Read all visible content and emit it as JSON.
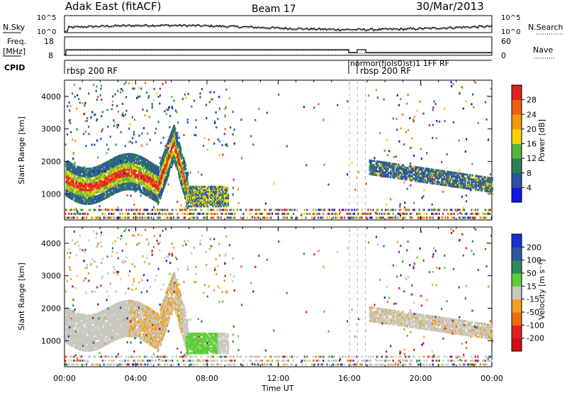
{
  "header": {
    "station": "Adak East (fitACF)",
    "beam": "Beam 17",
    "date": "30/Mar/2013"
  },
  "panels": {
    "nsky": {
      "left_label": "N.Sky",
      "right_label": "N.Search",
      "ticks_left": [
        "10^5",
        "10^0"
      ],
      "ticks_right": [
        "10^5",
        "10^0"
      ]
    },
    "freq": {
      "left_label_1": "Freq.",
      "left_label_2": "[MHz]",
      "right_label": "Nave",
      "ticks_left": [
        "18",
        "8"
      ],
      "ticks_right": [
        "60",
        "0"
      ]
    },
    "cpid": {
      "label": "CPID",
      "entries": [
        "rbsp 200 RF",
        "normor(fjols0)st)1 1FF RF",
        "rbsp 200 RF"
      ]
    }
  },
  "chart_data": [
    {
      "type": "heatmap",
      "title": "",
      "ylabel": "Slant Range [km]",
      "xlabel": "",
      "ylim": [
        200,
        4500
      ],
      "yticks": [
        "1000",
        "2000",
        "3000",
        "4000"
      ],
      "colorbar": {
        "label": "Power [dB]",
        "ticks": [
          "4",
          "8",
          "12",
          "16",
          "20",
          "24",
          "28"
        ],
        "range": [
          0,
          30
        ],
        "colors": [
          "#1414e6",
          "#2a52a8",
          "#2e7d5a",
          "#56b340",
          "#f5d200",
          "#f09a10",
          "#f06010",
          "#e02020"
        ]
      }
    },
    {
      "type": "heatmap",
      "title": "",
      "ylabel": "Slant Range [km]",
      "xlabel": "Time UT",
      "ylim": [
        200,
        4500
      ],
      "yticks": [
        "1000",
        "2000",
        "3000",
        "4000"
      ],
      "xticks": [
        "00:00",
        "04:00",
        "08:00",
        "12:00",
        "16:00",
        "20:00",
        "00:00"
      ],
      "xlim_hours": [
        0,
        24
      ],
      "colorbar": {
        "label": "Velocity [m s⁻¹]",
        "ticks": [
          "200",
          "100",
          "50",
          "15",
          "-15",
          "-50",
          "-100",
          "-200"
        ],
        "colors": [
          "#1a2fd0",
          "#2a5aa0",
          "#2f8a5a",
          "#5fcc3a",
          "#c8c8c0",
          "#f0a020",
          "#f06a10",
          "#e02020",
          "#d01010"
        ]
      }
    }
  ],
  "colors": {
    "gray_line": "#aaaaaa",
    "ground_scatter": "#bbbbb0"
  }
}
